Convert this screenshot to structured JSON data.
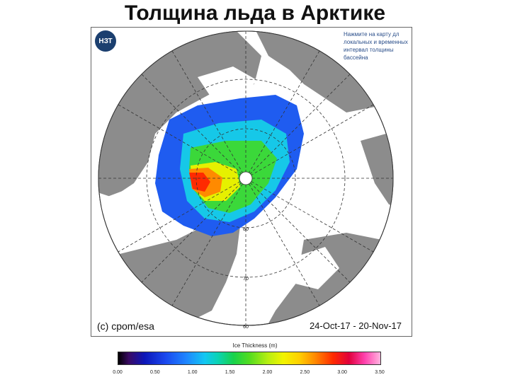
{
  "title": "Толщина льда в Арктике",
  "badge": "НЗТ",
  "hint": "Нажмите на карту дл локальных и временных интервал толщины бассейна",
  "credit": "(c) cpom/esa",
  "date_range": "24-Oct-17 - 20-Nov-17",
  "latitude_labels": [
    "80",
    "70",
    "60"
  ],
  "colorbar": {
    "title": "Ice Thickness (m)",
    "ticks": [
      "0.00",
      "0.50",
      "1.00",
      "1.50",
      "2.00",
      "2.50",
      "3.00",
      "3.50"
    ],
    "min": 0,
    "max": 3.5
  },
  "colors": {
    "land": "#8c8c8c",
    "ocean": "#ffffff",
    "grid": "#333333",
    "badge": "#1b3f6f"
  }
}
